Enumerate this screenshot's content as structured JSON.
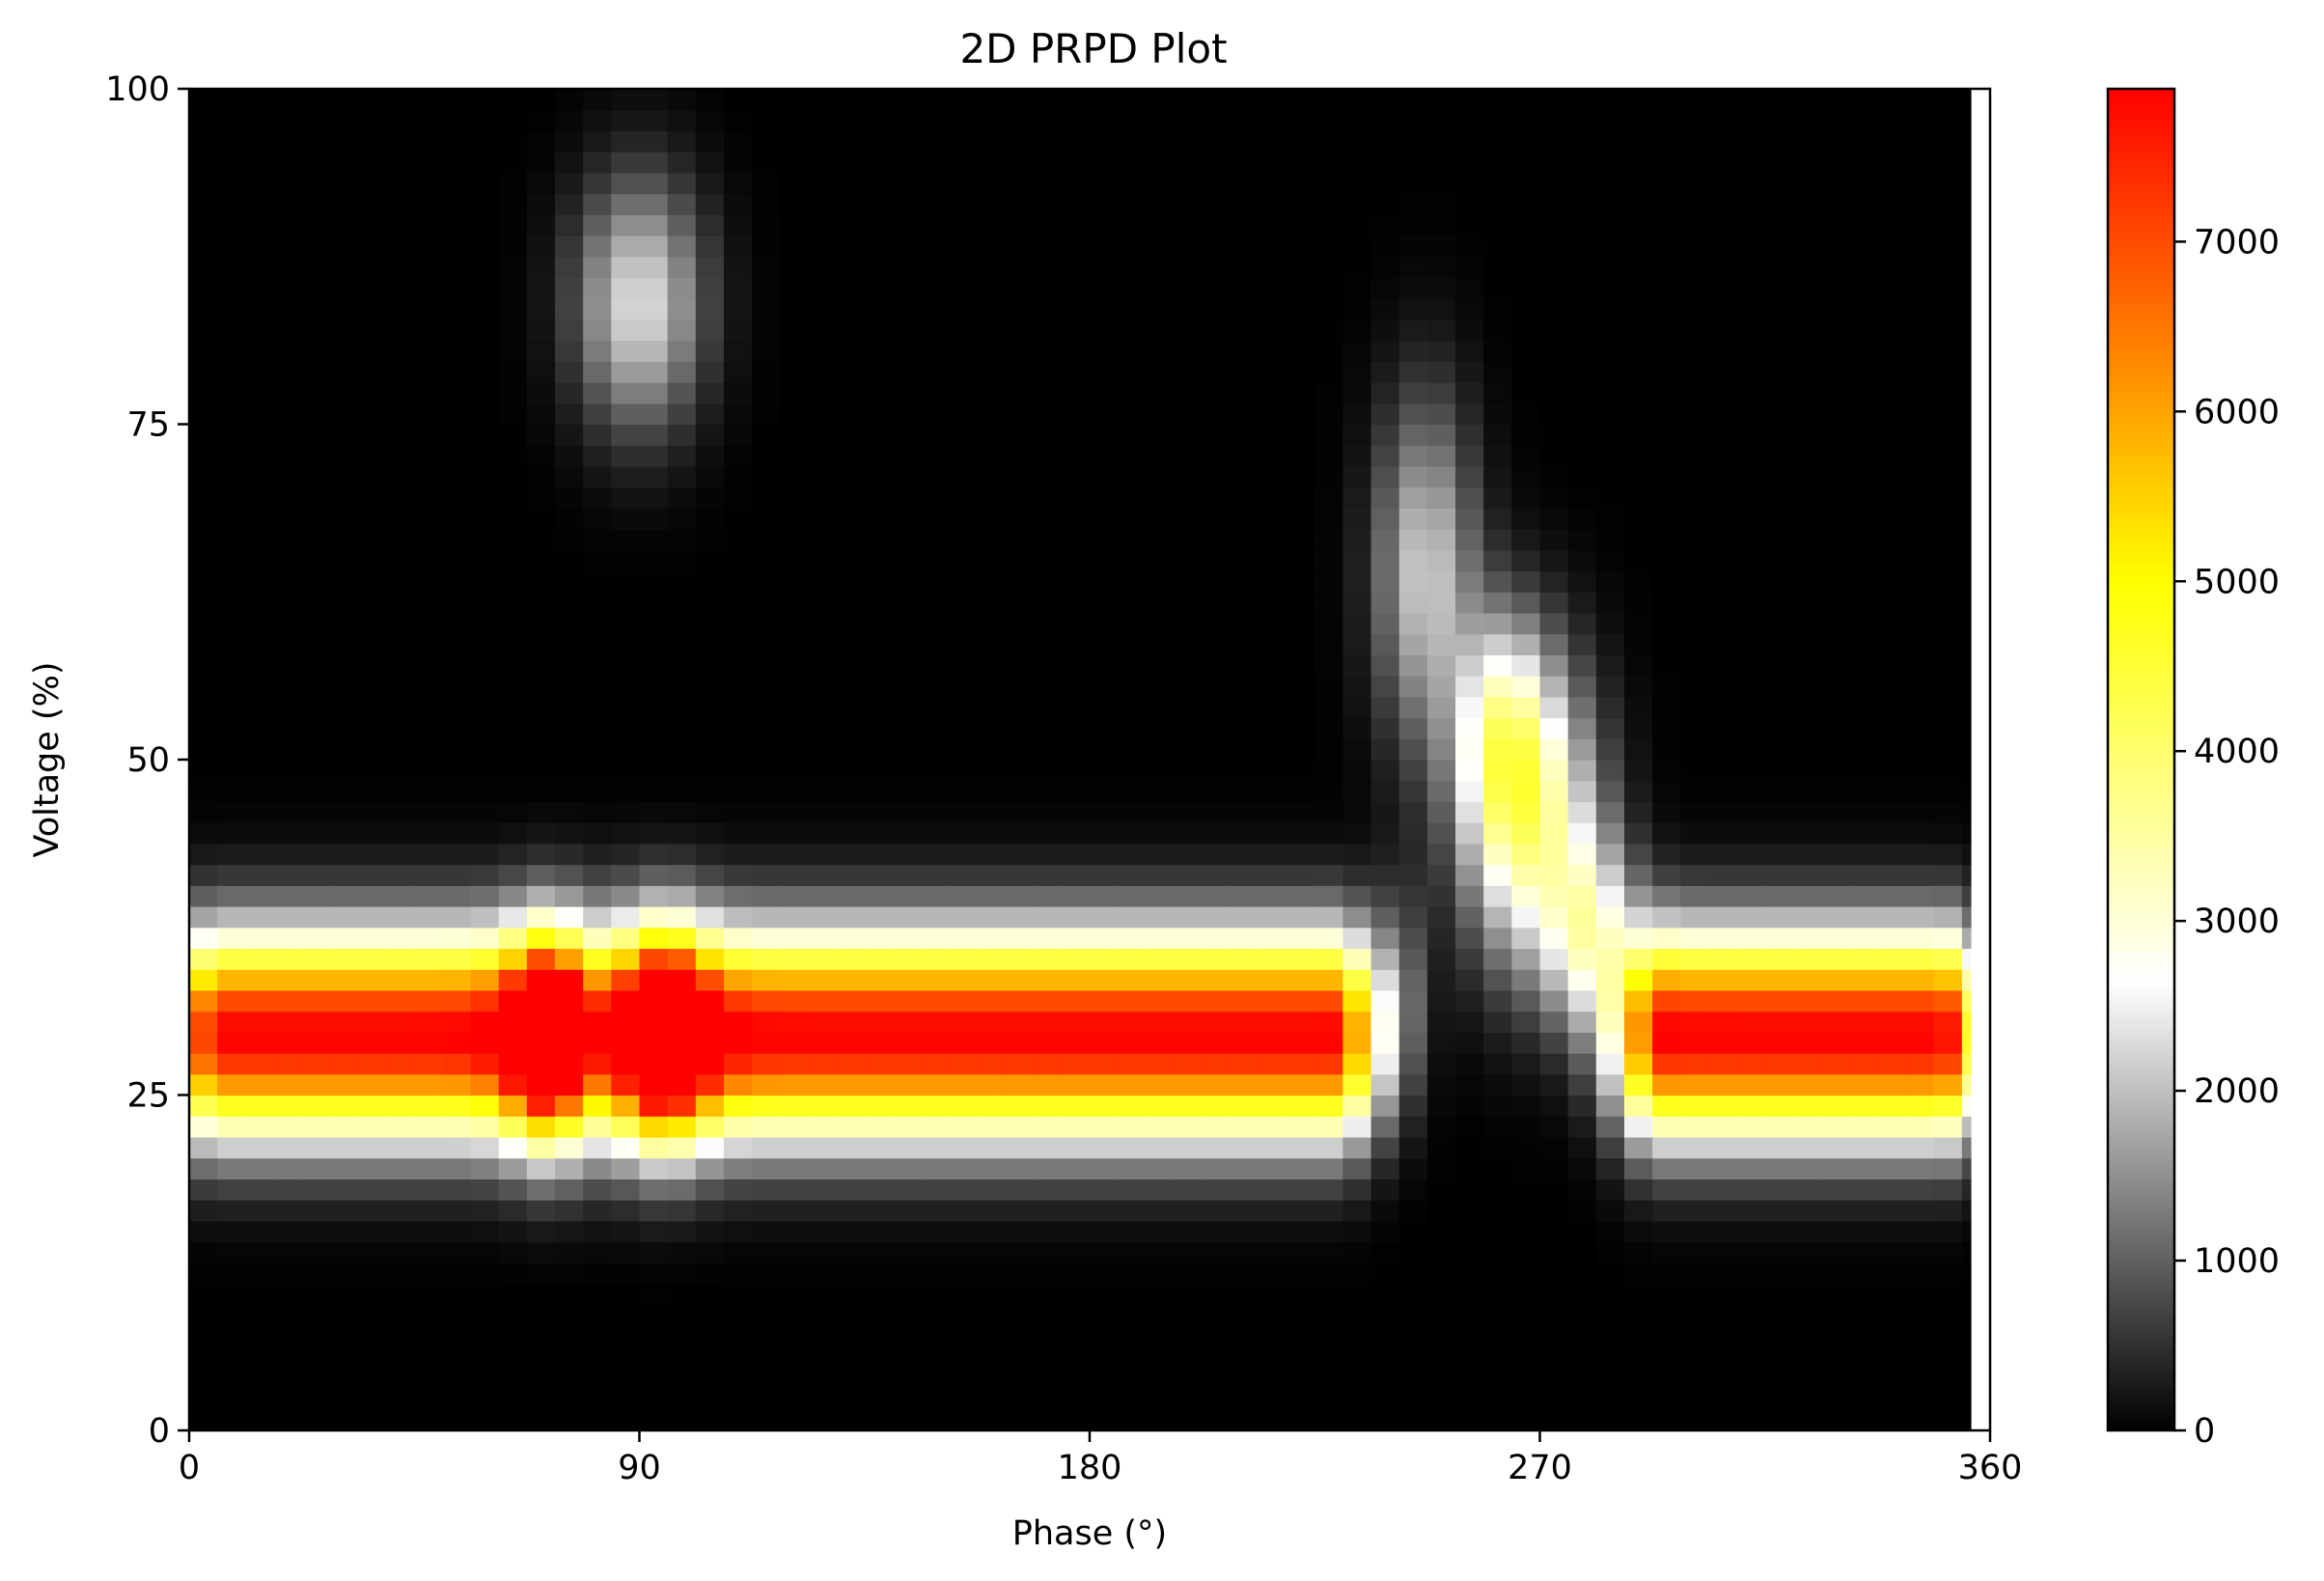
{
  "chart_data": {
    "type": "heatmap",
    "title": "2D PRPD Plot",
    "xlabel": "Phase (°)",
    "ylabel": "Voltage (%)",
    "xlim": [
      0,
      360
    ],
    "ylim": [
      0,
      100
    ],
    "x_ticks": [
      0,
      90,
      180,
      270,
      360
    ],
    "y_ticks": [
      0,
      25,
      50,
      75,
      100
    ],
    "colorbar": {
      "min": 0,
      "max": 7900,
      "ticks": [
        0,
        1000,
        2000,
        3000,
        4000,
        5000,
        6000,
        7000
      ],
      "stops": [
        {
          "value": 0,
          "color": "#000000"
        },
        {
          "value": 2650,
          "color": "#ffffff"
        },
        {
          "value": 5000,
          "color": "#ffff00"
        },
        {
          "value": 6400,
          "color": "#ff7f00"
        },
        {
          "value": 7900,
          "color": "#ff0000"
        }
      ]
    },
    "grid": {
      "nx": 64,
      "ny": 64,
      "phase_step": 5.625,
      "voltage_step": 1.5625
    },
    "clusters": [
      {
        "kind": "band",
        "phase_min": 6,
        "phase_max": 70,
        "voltage_center": 29.5,
        "voltage_sigma": 5.2,
        "phase_edge": 7,
        "peak": 7900
      },
      {
        "kind": "band",
        "phase_min": 95,
        "phase_max": 228,
        "voltage_center": 29.5,
        "voltage_sigma": 5.2,
        "phase_edge": 7,
        "peak": 7900
      },
      {
        "kind": "band",
        "phase_min": 295,
        "phase_max": 350,
        "voltage_center": 29.5,
        "voltage_sigma": 5.2,
        "phase_edge": 7,
        "peak": 7900
      },
      {
        "kind": "band",
        "phase_min": 73,
        "phase_max": 95,
        "voltage_center": 29.5,
        "voltage_sigma": 5.4,
        "phase_edge": 6,
        "peak": 5000
      },
      {
        "kind": "spot",
        "phase": 90,
        "voltage": 84,
        "phase_sigma": 9,
        "voltage_sigma": 6.5,
        "peak": 2300
      },
      {
        "kind": "spot",
        "phase": 247,
        "voltage": 64,
        "phase_sigma": 7,
        "voltage_sigma": 9,
        "peak": 2100
      },
      {
        "kind": "spot",
        "phase": 262,
        "voltage": 52,
        "phase_sigma": 6,
        "voltage_sigma": 6,
        "peak": 2100
      },
      {
        "kind": "spot",
        "phase": 268,
        "voltage": 46,
        "phase_sigma": 9,
        "voltage_sigma": 8,
        "peak": 3500
      },
      {
        "kind": "spot",
        "phase": 280,
        "voltage": 37,
        "phase_sigma": 6,
        "voltage_sigma": 5,
        "peak": 2500
      },
      {
        "kind": "spot",
        "phase": 242,
        "voltage": 33,
        "phase_sigma": 4,
        "voltage_sigma": 6,
        "peak": 800
      }
    ]
  }
}
